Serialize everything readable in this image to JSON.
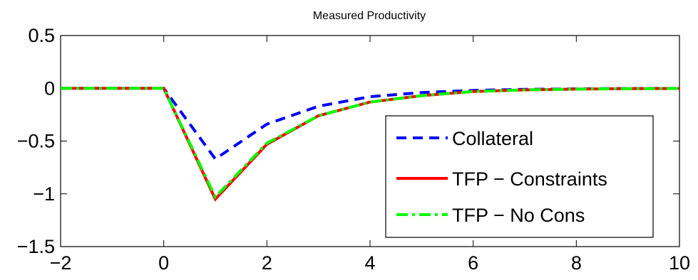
{
  "chart_data": {
    "type": "line",
    "title": "Measured Productivity",
    "xlabel": "",
    "ylabel": "",
    "xlim": [
      -2,
      10
    ],
    "ylim": [
      -1.5,
      0.5
    ],
    "xticks": [
      -2,
      0,
      2,
      4,
      6,
      8,
      10
    ],
    "yticks": [
      0.5,
      0,
      -0.5,
      -1,
      -1.5
    ],
    "xtick_labels": [
      "−2",
      "0",
      "2",
      "4",
      "6",
      "8",
      "10"
    ],
    "ytick_labels": [
      "0.5",
      "0",
      "−0.5",
      "−1",
      "−1.5"
    ],
    "grid": false,
    "legend_position": "lower-right",
    "x": [
      -2,
      -1,
      0,
      1,
      2,
      3,
      4,
      5,
      6,
      7,
      8,
      9,
      10
    ],
    "series": [
      {
        "name": "Collateral",
        "color": "#0000ff",
        "style": "dashed",
        "values": [
          0,
          0,
          0,
          -0.67,
          -0.34,
          -0.17,
          -0.08,
          -0.04,
          -0.02,
          -0.01,
          -0.005,
          -0.002,
          0
        ]
      },
      {
        "name": "TFP − Constraints",
        "color": "#ff0000",
        "style": "solid",
        "values": [
          0,
          0,
          0,
          -1.05,
          -0.53,
          -0.26,
          -0.13,
          -0.07,
          -0.03,
          -0.015,
          -0.008,
          -0.004,
          -0.002
        ]
      },
      {
        "name": "TFP − No Cons",
        "color": "#00ff00",
        "style": "dashdot",
        "values": [
          0,
          0,
          0,
          -1.03,
          -0.52,
          -0.26,
          -0.13,
          -0.07,
          -0.03,
          -0.015,
          -0.008,
          -0.004,
          -0.002
        ]
      }
    ]
  }
}
